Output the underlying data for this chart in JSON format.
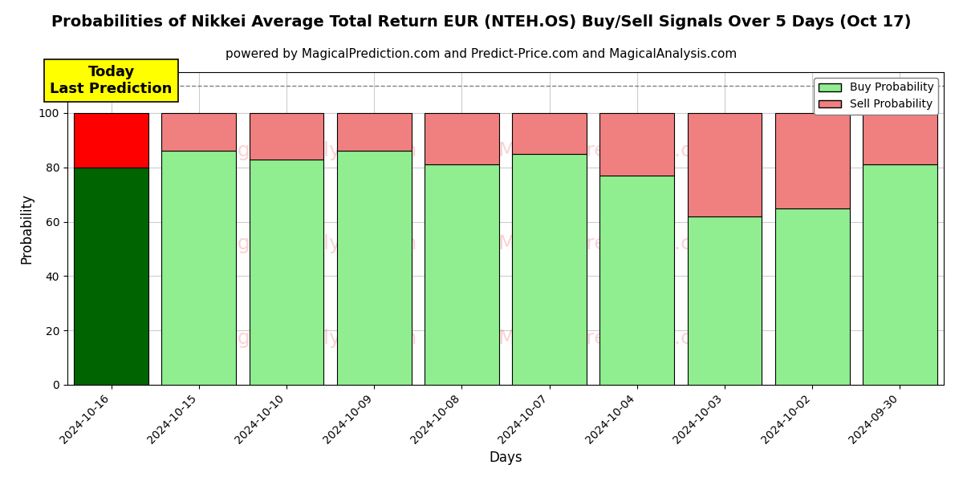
{
  "title": "Probabilities of Nikkei Average Total Return EUR (NTEH.OS) Buy/Sell Signals Over 5 Days (Oct 17)",
  "subtitle": "powered by MagicalPrediction.com and Predict-Price.com and MagicalAnalysis.com",
  "xlabel": "Days",
  "ylabel": "Probability",
  "categories": [
    "2024-10-16",
    "2024-10-15",
    "2024-10-10",
    "2024-10-09",
    "2024-10-08",
    "2024-10-07",
    "2024-10-04",
    "2024-10-03",
    "2024-10-02",
    "2024-09-30"
  ],
  "buy_values": [
    80,
    86,
    83,
    86,
    81,
    85,
    77,
    62,
    65,
    81
  ],
  "sell_values": [
    20,
    14,
    17,
    14,
    19,
    15,
    23,
    38,
    35,
    19
  ],
  "first_bar_buy_color": "#006400",
  "first_bar_sell_color": "#ff0000",
  "buy_color": "#90EE90",
  "sell_color": "#f08080",
  "bar_edge_color": "#000000",
  "background_color": "#ffffff",
  "grid_color": "#cccccc",
  "annotation_text": "Today\nLast Prediction",
  "annotation_bg_color": "#ffff00",
  "dashed_line_y": 110,
  "ylim": [
    0,
    115
  ],
  "yticks": [
    0,
    20,
    40,
    60,
    80,
    100
  ],
  "legend_buy_label": "Buy Probability",
  "legend_sell_label": "Sell Probability",
  "watermark_color": "#f08080",
  "watermark_alpha": 0.35,
  "title_fontsize": 14,
  "subtitle_fontsize": 11,
  "axis_label_fontsize": 12,
  "tick_fontsize": 10,
  "annotation_fontsize": 13
}
